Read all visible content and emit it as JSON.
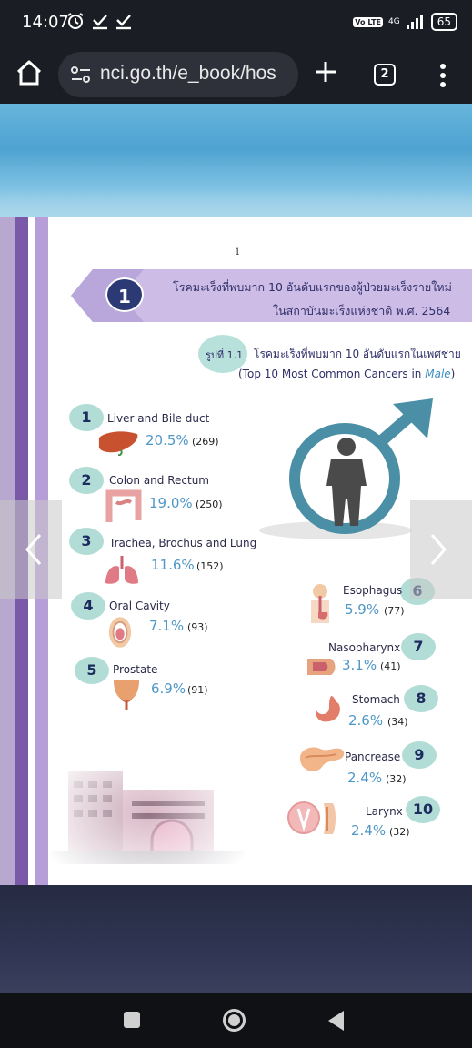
{
  "status_bar": {
    "time": "14:07",
    "volte": "Vo LTE",
    "network": "4G",
    "battery": "65"
  },
  "browser": {
    "url": "nci.go.th/e_book/hos",
    "tab_count": "2"
  },
  "document": {
    "page_number": "1",
    "chapter_number": "1",
    "chapter_title": "โรคมะเร็งที่พบมาก 10 อันดับแรกของผู้ป่วยมะเร็งรายใหม่",
    "chapter_subtitle": "ในสถาบันมะเร็งแห่งชาติ พ.ศ. 2564",
    "figure_label": "รูปที่ 1.1",
    "figure_title": "โรคมะเร็งที่พบมาก 10 อันดับแรกในเพศชาย",
    "figure_subtitle_prefix": "(Top 10 Most Common Cancers in ",
    "figure_subtitle_gender": "Male",
    "figure_subtitle_suffix": ")"
  },
  "chart_data": {
    "type": "table",
    "title": "โรคมะเร็งที่พบมาก 10 อันดับแรกในเพศชาย",
    "subtitle": "(Top 10 Most Common Cancers in Male)",
    "rows": [
      {
        "rank": "1",
        "name": "Liver and Bile duct",
        "percent": "20.5%",
        "count": "(269)"
      },
      {
        "rank": "2",
        "name": "Colon and Rectum",
        "percent": "19.0%",
        "count": "(250)"
      },
      {
        "rank": "3",
        "name": "Trachea, Brochus and Lung",
        "percent": "11.6%",
        "count": "(152)"
      },
      {
        "rank": "4",
        "name": "Oral Cavity",
        "percent": "7.1%",
        "count": "(93)"
      },
      {
        "rank": "5",
        "name": "Prostate",
        "percent": "6.9%",
        "count": "(91)"
      },
      {
        "rank": "6",
        "name": "Esophagus",
        "percent": "5.9%",
        "count": "(77)"
      },
      {
        "rank": "7",
        "name": "Nasopharynx",
        "percent": "3.1%",
        "count": "(41)"
      },
      {
        "rank": "8",
        "name": "Stomach",
        "percent": "2.6%",
        "count": "(34)"
      },
      {
        "rank": "9",
        "name": "Pancrease",
        "percent": "2.4%",
        "count": "(32)"
      },
      {
        "rank": "10",
        "name": "Larynx",
        "percent": "2.4%",
        "count": "(32)"
      }
    ]
  },
  "colors": {
    "accent_purple": "#7a5aa8",
    "banner_lavender": "#cdbde6",
    "badge_teal": "#b2ddd6",
    "percent_blue": "#4f97c7",
    "male_symbol": "#4a8fa6"
  }
}
